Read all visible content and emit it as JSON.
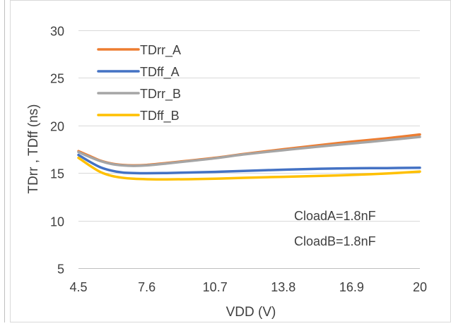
{
  "chart_data": {
    "type": "line",
    "xlabel": "VDD (V)",
    "ylabel": "TDrr , TDff (ns)",
    "xlim": [
      4.5,
      20
    ],
    "ylim": [
      5,
      30
    ],
    "xticks": [
      "4.5",
      "7.6",
      "10.7",
      "13.8",
      "16.9",
      "20"
    ],
    "xtick_values": [
      4.5,
      7.6,
      10.7,
      13.8,
      16.9,
      20
    ],
    "yticks": [
      "5",
      "10",
      "15",
      "20",
      "25",
      "30"
    ],
    "ytick_values": [
      5,
      10,
      15,
      20,
      25,
      30
    ],
    "grid": "horizontal",
    "legend": "top-left",
    "annotations": [
      "CloadA=1.8nF",
      "CloadB=1.8nF"
    ],
    "series": [
      {
        "name": "TDrr_A",
        "color": "#ED7D31",
        "x": [
          4.5,
          5.0,
          5.5,
          6.0,
          6.5,
          7.0,
          7.6,
          8.5,
          9.5,
          10.7,
          12.0,
          13.8,
          15.5,
          16.9,
          18.5,
          20.0
        ],
        "y": [
          17.3,
          16.8,
          16.3,
          16.0,
          15.85,
          15.8,
          15.85,
          16.05,
          16.3,
          16.6,
          17.0,
          17.5,
          17.95,
          18.3,
          18.65,
          19.05
        ]
      },
      {
        "name": "TDff_A",
        "color": "#4472C4",
        "x": [
          4.5,
          5.0,
          5.5,
          6.0,
          6.5,
          7.0,
          7.6,
          8.5,
          9.5,
          10.7,
          12.0,
          13.8,
          15.5,
          16.9,
          18.5,
          20.0
        ],
        "y": [
          16.9,
          16.2,
          15.6,
          15.25,
          15.05,
          15.0,
          14.98,
          15.0,
          15.05,
          15.12,
          15.22,
          15.35,
          15.45,
          15.5,
          15.52,
          15.55
        ]
      },
      {
        "name": "TDrr_B",
        "color": "#A5A5A5",
        "x": [
          4.5,
          5.0,
          5.5,
          6.0,
          6.5,
          7.0,
          7.6,
          8.5,
          9.5,
          10.7,
          12.0,
          13.8,
          15.5,
          16.9,
          18.5,
          20.0
        ],
        "y": [
          17.2,
          16.7,
          16.25,
          15.95,
          15.8,
          15.75,
          15.8,
          16.0,
          16.25,
          16.55,
          16.95,
          17.4,
          17.8,
          18.1,
          18.45,
          18.8
        ]
      },
      {
        "name": "TDff_B",
        "color": "#FFC000",
        "x": [
          4.5,
          5.0,
          5.5,
          6.0,
          6.5,
          7.0,
          7.6,
          8.5,
          9.5,
          10.7,
          12.0,
          13.8,
          15.5,
          16.9,
          18.5,
          20.0
        ],
        "y": [
          16.6,
          15.8,
          15.1,
          14.7,
          14.5,
          14.4,
          14.35,
          14.33,
          14.35,
          14.4,
          14.5,
          14.6,
          14.7,
          14.8,
          14.95,
          15.15
        ]
      }
    ]
  }
}
